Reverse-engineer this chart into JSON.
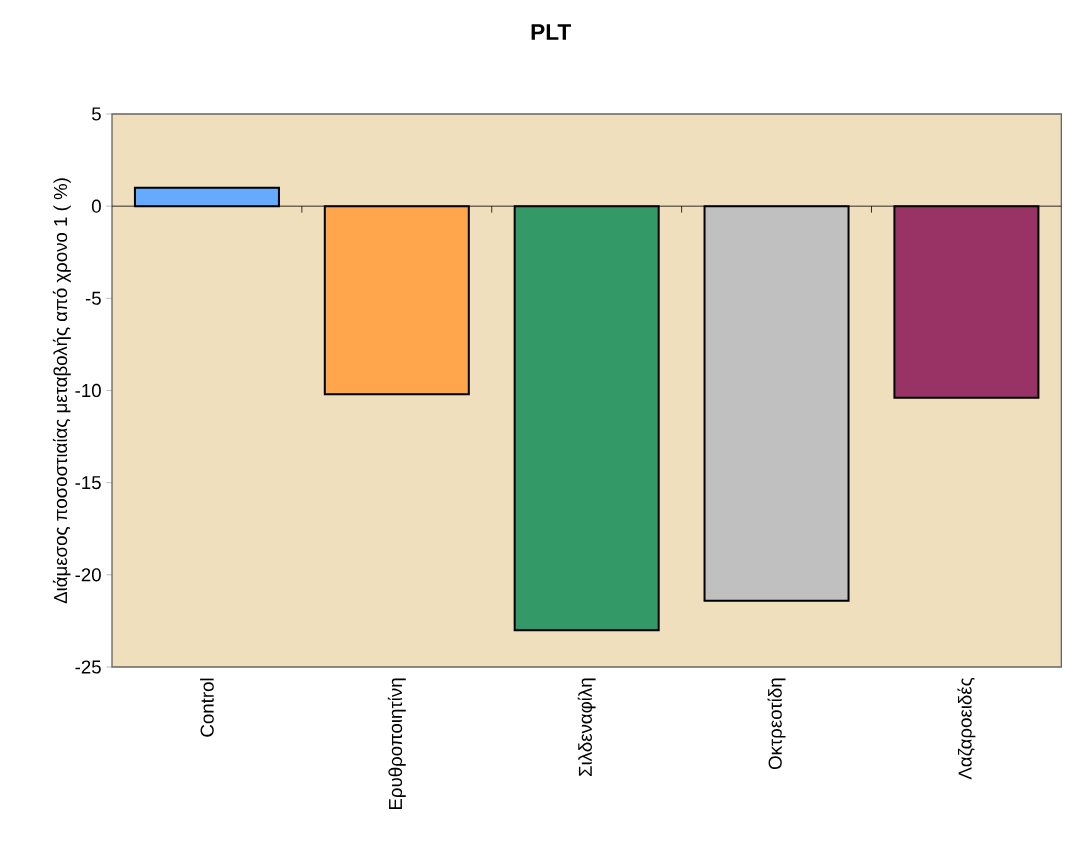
{
  "chart_data": {
    "type": "bar",
    "title": "PLT",
    "ylabel": "Διάμεσος ποσοστιαίας μεταβολής από χρονο 1  ( %)",
    "categories": [
      "Control",
      "Ερυθροποιητίνη",
      "Σιλδεναφίλη",
      "Οκτρεοτίδη",
      "Λαζαροειδές"
    ],
    "values": [
      1.0,
      -10.2,
      -23.0,
      -21.4,
      -10.4
    ],
    "colors": [
      "#66aaff",
      "#ffa64d",
      "#339966",
      "#c0c0c0",
      "#993366"
    ],
    "ylim": [
      -25,
      5
    ],
    "yticks": [
      -25,
      -20,
      -15,
      -10,
      -5,
      0,
      5
    ]
  }
}
